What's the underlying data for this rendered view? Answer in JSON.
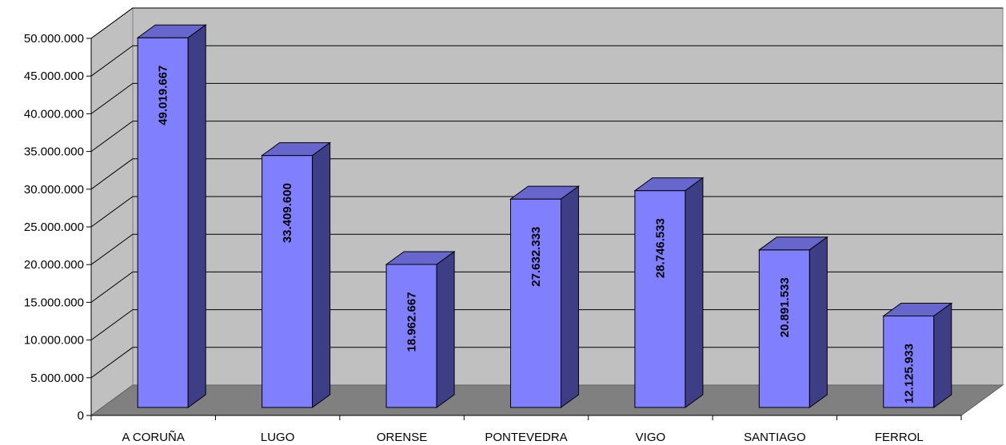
{
  "chart_data": {
    "type": "bar",
    "title": "",
    "xlabel": "",
    "ylabel": "",
    "categories": [
      "A CORUÑA",
      "LUGO",
      "ORENSE",
      "PONTEVEDRA",
      "VIGO",
      "SANTIAGO",
      "FERROL"
    ],
    "values": [
      49019667,
      33409600,
      18962667,
      27632333,
      28746533,
      20891533,
      12125933
    ],
    "value_labels": [
      "49.019.667",
      "33.409.600",
      "18.962.667",
      "27.632.333",
      "28.746.533",
      "20.891.533",
      "12.125.933"
    ],
    "ylim": [
      0,
      50000000
    ],
    "yticks": [
      0,
      5000000,
      10000000,
      15000000,
      20000000,
      25000000,
      30000000,
      35000000,
      40000000,
      45000000,
      50000000
    ],
    "ytick_labels": [
      "0",
      "5.000.000",
      "10.000.000",
      "15.000.000",
      "20.000.000",
      "25.000.000",
      "30.000.000",
      "35.000.000",
      "40.000.000",
      "45.000.000",
      "50.000.000"
    ],
    "grid": true,
    "legend": "none",
    "style": "3d-column",
    "colors": {
      "bar_front": "#8080FF",
      "bar_top": "#6666CC",
      "bar_side": "#3E3E86",
      "wall": "#C0C0C0",
      "floor": "#808080",
      "gridline": "#000000"
    }
  }
}
